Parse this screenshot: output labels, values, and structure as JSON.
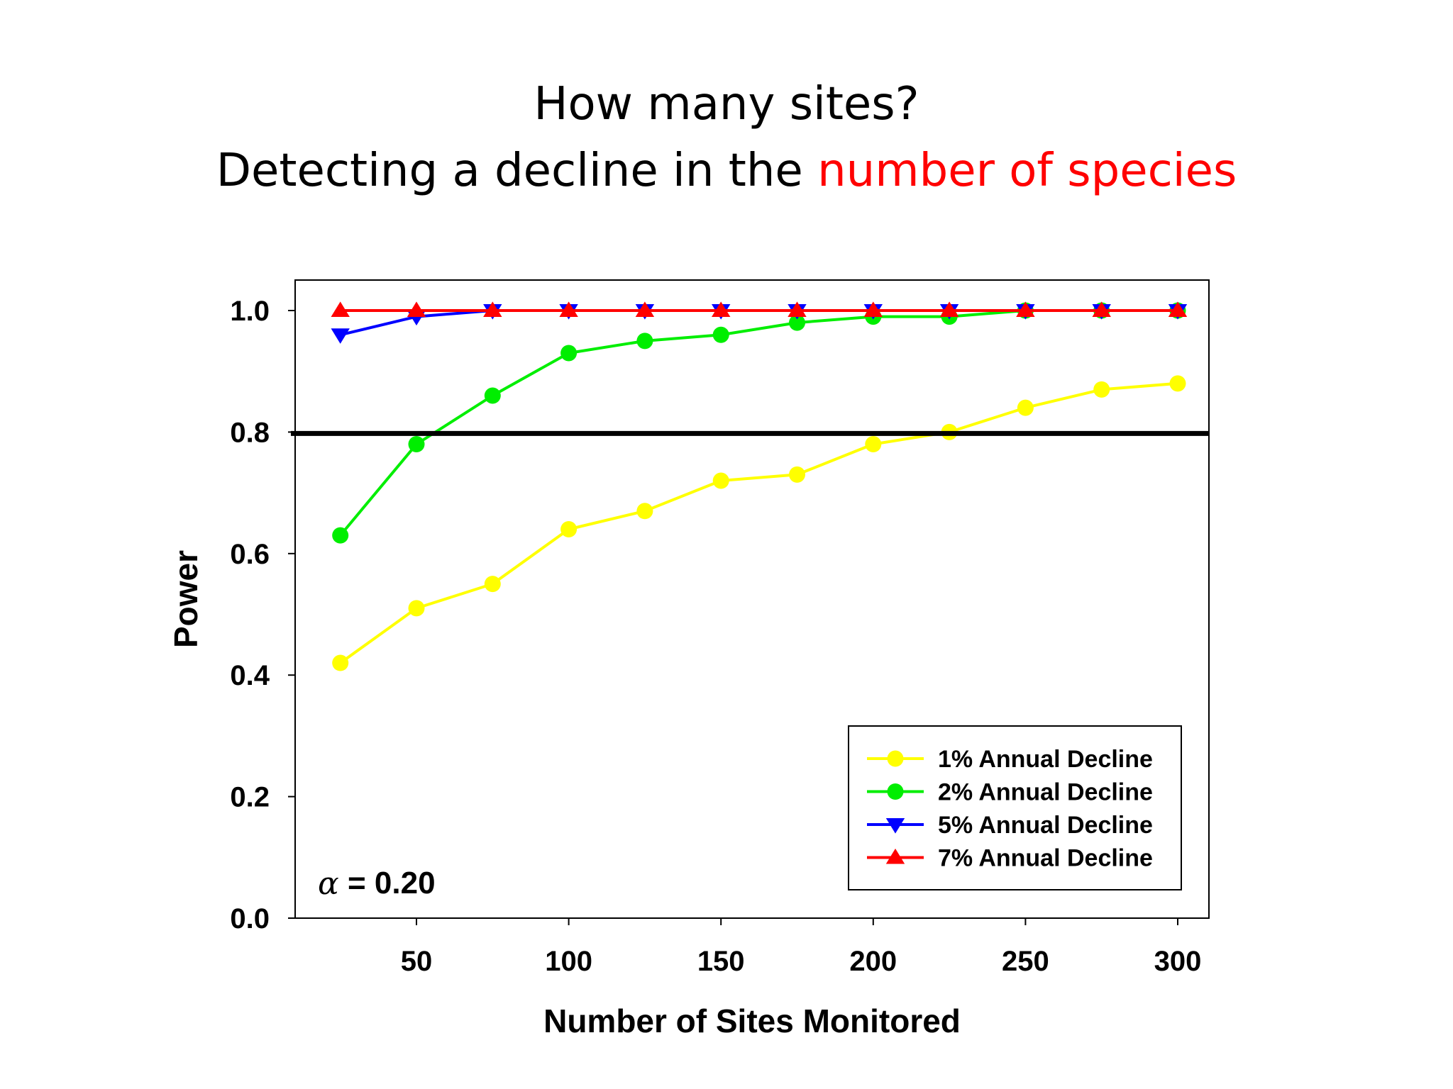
{
  "title": {
    "line1": "How many sites?",
    "line2_prefix": "Detecting a decline in the ",
    "line2_highlight": "number of species",
    "highlight_color": "#ff0000"
  },
  "chart_data": {
    "type": "line",
    "xlabel": "Number of Sites Monitored",
    "ylabel": "Power",
    "xlim": [
      10,
      310
    ],
    "ylim": [
      0,
      1.05
    ],
    "x_ticks": [
      "50",
      "100",
      "150",
      "200",
      "250",
      "300"
    ],
    "y_ticks": [
      "0.0",
      "0.2",
      "0.4",
      "0.6",
      "0.8",
      "1.0"
    ],
    "grid": false,
    "legend_position": "bottom-right",
    "reference_line": {
      "y": 0.8,
      "color": "#000000"
    },
    "annotation": {
      "symbol": "α",
      "text": "= 0.20"
    },
    "x": [
      25,
      50,
      75,
      100,
      125,
      150,
      175,
      200,
      225,
      250,
      275,
      300
    ],
    "series": [
      {
        "name": "1% Annual Decline",
        "color": "#ffff00",
        "marker": "circle",
        "values": [
          0.42,
          0.51,
          0.55,
          0.64,
          0.67,
          0.72,
          0.73,
          0.78,
          0.8,
          0.84,
          0.87,
          0.88
        ]
      },
      {
        "name": "2% Annual Decline",
        "color": "#00ee00",
        "marker": "circle",
        "values": [
          0.63,
          0.78,
          0.86,
          0.93,
          0.95,
          0.96,
          0.98,
          0.99,
          0.99,
          1.0,
          1.0,
          1.0
        ]
      },
      {
        "name": "5% Annual Decline",
        "color": "#0000ff",
        "marker": "triangle-down",
        "values": [
          0.96,
          0.99,
          1.0,
          1.0,
          1.0,
          1.0,
          1.0,
          1.0,
          1.0,
          1.0,
          1.0,
          1.0
        ]
      },
      {
        "name": "7% Annual Decline",
        "color": "#ff0000",
        "marker": "triangle-up",
        "values": [
          1.0,
          1.0,
          1.0,
          1.0,
          1.0,
          1.0,
          1.0,
          1.0,
          1.0,
          1.0,
          1.0,
          1.0
        ]
      }
    ]
  }
}
